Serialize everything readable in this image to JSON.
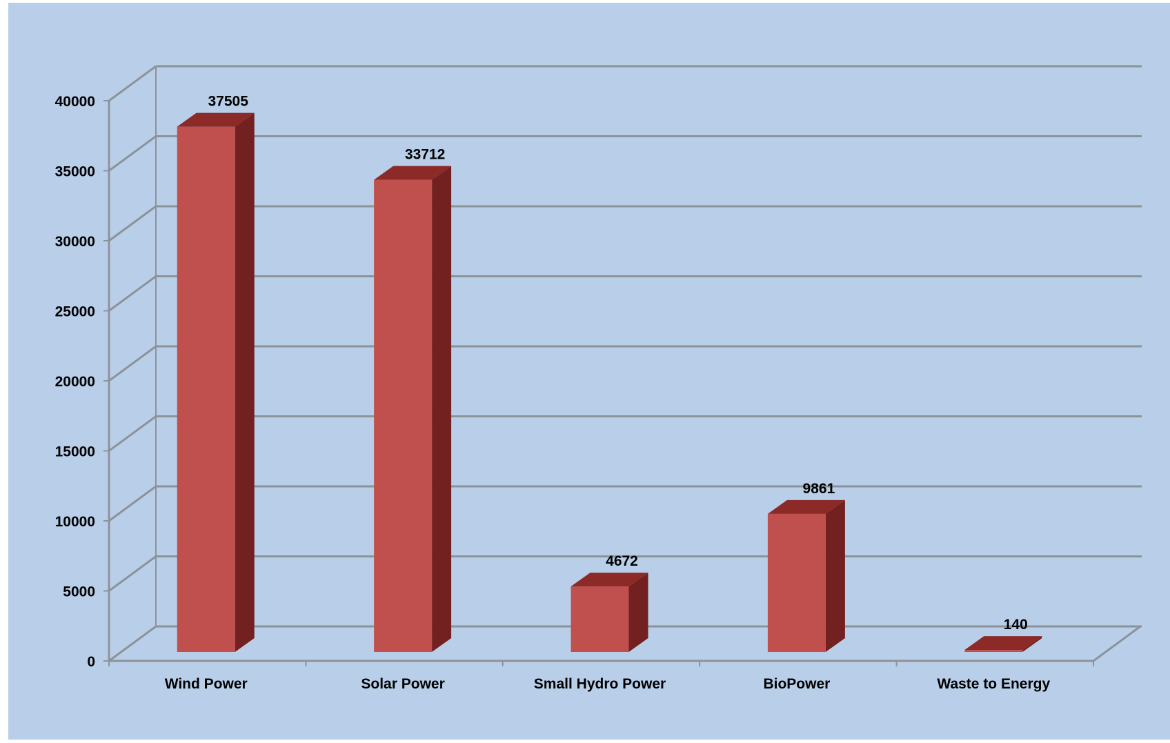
{
  "chart_data": {
    "type": "bar",
    "categories": [
      "Wind Power",
      "Solar Power",
      "Small Hydro Power",
      "BioPower",
      "Waste to Energy"
    ],
    "values": [
      37505,
      33712,
      4672,
      9861,
      140
    ],
    "data_labels": [
      "37505",
      "33712",
      "4672",
      "9861",
      "140"
    ],
    "y_ticks": [
      "0",
      "5000",
      "10000",
      "15000",
      "20000",
      "25000",
      "30000",
      "35000",
      "40000"
    ],
    "ylim": [
      0,
      40000
    ],
    "title": "",
    "xlabel": "",
    "ylabel": "",
    "grid": true,
    "three_d": true,
    "colors": {
      "background": "#b9cfe9",
      "bar_front": "#c0504d",
      "bar_side": "#722020",
      "bar_top": "#8c2a28",
      "grid": "#8c9398"
    }
  }
}
